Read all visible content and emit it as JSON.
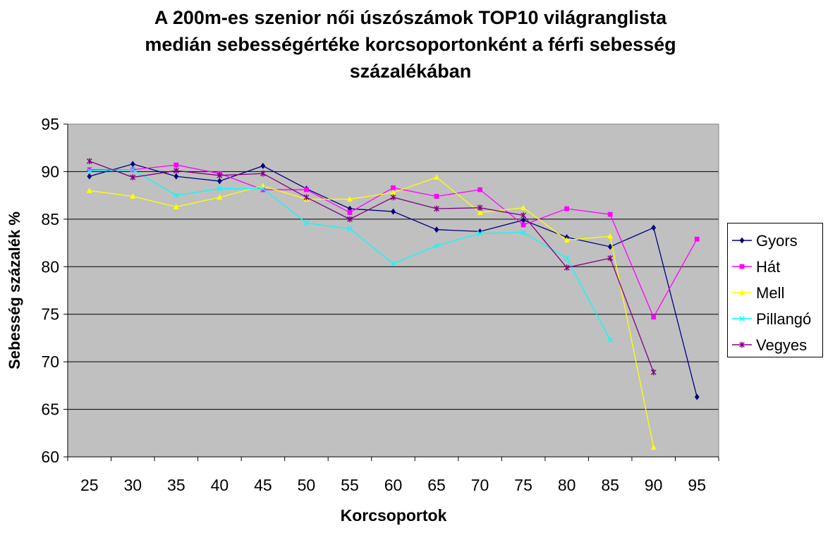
{
  "chart_data": {
    "type": "line",
    "title_lines": [
      "A 200m-es szenior női úszószámok TOP10 világranglista",
      "medián sebességértéke korcsoportonként a férfi sebesség",
      "százalékában"
    ],
    "xlabel": "Korcsoportok",
    "ylabel": "Sebesség százalék %",
    "categories": [
      "25",
      "30",
      "35",
      "40",
      "45",
      "50",
      "55",
      "60",
      "65",
      "70",
      "75",
      "80",
      "85",
      "90",
      "95"
    ],
    "ylim": [
      60,
      95
    ],
    "yticks": [
      60,
      65,
      70,
      75,
      80,
      85,
      90,
      95
    ],
    "grid": "horizontal major gridlines",
    "plot_background": "#c0c0c0",
    "legend_position": "right",
    "series": [
      {
        "name": "Gyors",
        "color": "#000080",
        "marker": "diamond",
        "values": [
          89.5,
          90.8,
          89.5,
          89.0,
          90.6,
          88.2,
          86.1,
          85.8,
          83.9,
          83.7,
          84.9,
          83.1,
          82.1,
          84.1,
          66.3
        ]
      },
      {
        "name": "Hát",
        "color": "#ff00ff",
        "marker": "square",
        "values": [
          90.2,
          90.2,
          90.7,
          89.8,
          88.1,
          88.1,
          85.7,
          88.3,
          87.4,
          88.1,
          84.4,
          86.1,
          85.5,
          74.7,
          82.9
        ]
      },
      {
        "name": "Mell",
        "color": "#ffff00",
        "marker": "triangle",
        "values": [
          88.0,
          87.4,
          86.3,
          87.3,
          88.5,
          87.1,
          87.1,
          87.8,
          89.4,
          85.7,
          86.2,
          82.8,
          83.2,
          61.0,
          null
        ]
      },
      {
        "name": "Pillangó",
        "color": "#00ffff",
        "marker": "x",
        "values": [
          90.1,
          90.2,
          87.5,
          88.2,
          88.2,
          84.6,
          84.0,
          80.3,
          82.2,
          83.5,
          83.6,
          80.9,
          72.3,
          null,
          null
        ]
      },
      {
        "name": "Vegyes",
        "color": "#800080",
        "marker": "star",
        "values": [
          91.1,
          89.4,
          90.1,
          89.6,
          89.8,
          87.3,
          85.0,
          87.3,
          86.1,
          86.2,
          85.4,
          79.9,
          80.9,
          68.9,
          null
        ]
      }
    ]
  }
}
